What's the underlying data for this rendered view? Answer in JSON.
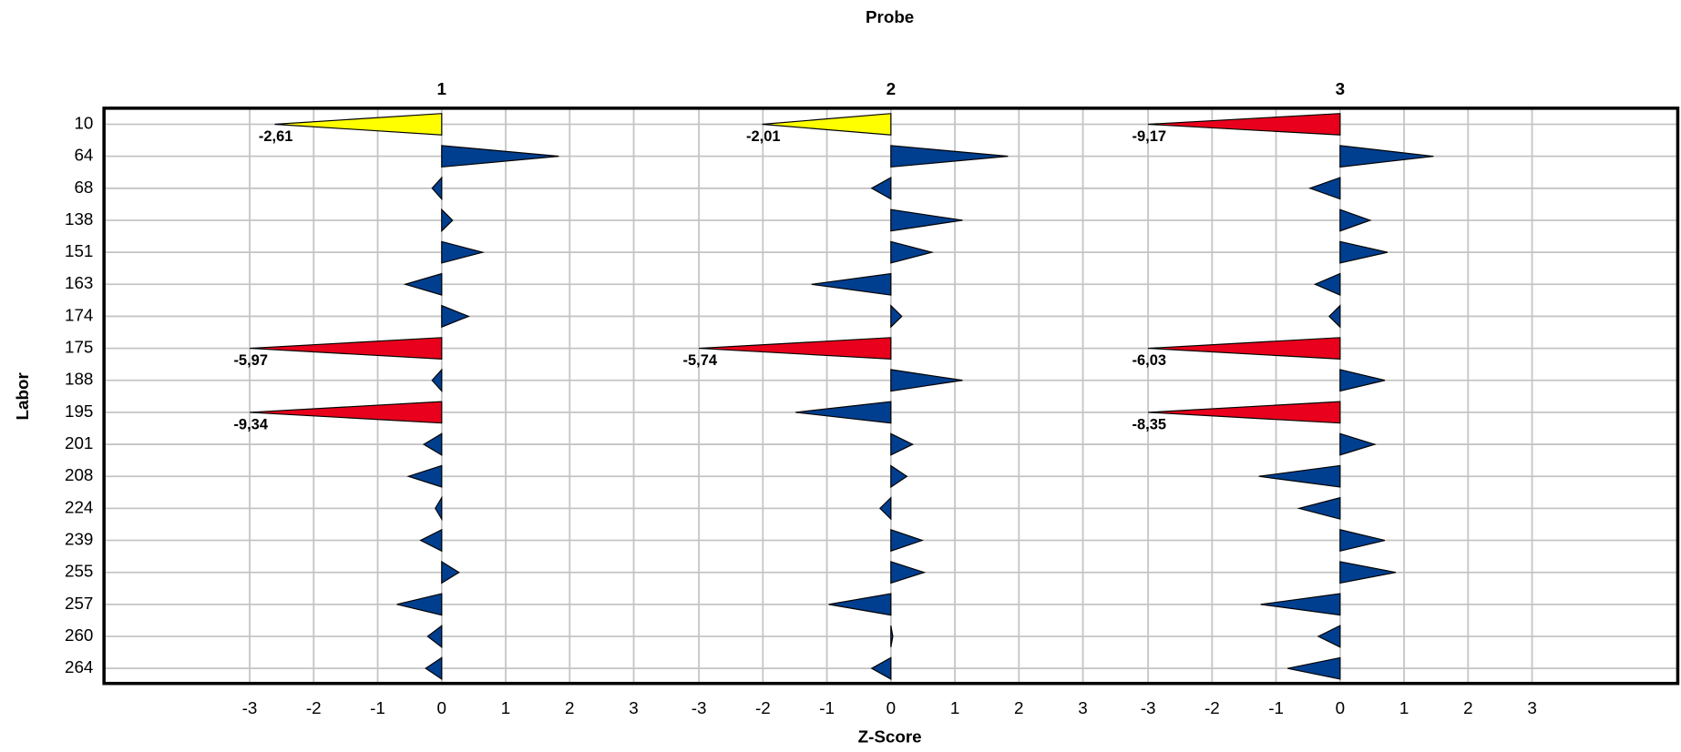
{
  "chart_data": {
    "type": "bar",
    "title": "Probe",
    "xlabel": "Z-Score",
    "ylabel": "Labor",
    "categories": [
      "10",
      "64",
      "68",
      "138",
      "151",
      "163",
      "174",
      "175",
      "188",
      "195",
      "201",
      "208",
      "224",
      "239",
      "255",
      "257",
      "260",
      "264"
    ],
    "xlim": [
      -3,
      3
    ],
    "xticks": [
      -3,
      -2,
      -1,
      0,
      1,
      2,
      3
    ],
    "grid": true,
    "panels": [
      {
        "title": "1",
        "values": [
          -2.61,
          1.83,
          -0.15,
          0.17,
          0.64,
          -0.57,
          0.42,
          -5.97,
          -0.15,
          -9.34,
          -0.28,
          -0.52,
          -0.1,
          -0.33,
          0.27,
          -0.7,
          -0.22,
          -0.25
        ],
        "value_labels": [
          "-2,61",
          null,
          null,
          null,
          null,
          null,
          null,
          "-5,97",
          null,
          "-9,34",
          null,
          null,
          null,
          null,
          null,
          null,
          null,
          null
        ],
        "colors": [
          "#ffff00",
          "#003f8f",
          "#003f8f",
          "#003f8f",
          "#003f8f",
          "#003f8f",
          "#003f8f",
          "#e8001c",
          "#003f8f",
          "#e8001c",
          "#003f8f",
          "#003f8f",
          "#003f8f",
          "#003f8f",
          "#003f8f",
          "#003f8f",
          "#003f8f",
          "#003f8f"
        ]
      },
      {
        "title": "2",
        "values": [
          -2.01,
          1.83,
          -0.3,
          1.12,
          0.64,
          -1.24,
          0.17,
          -5.74,
          1.12,
          -1.49,
          0.34,
          0.25,
          -0.17,
          0.49,
          0.52,
          -0.97,
          0.03,
          -0.3
        ],
        "value_labels": [
          "-2,01",
          null,
          null,
          null,
          null,
          null,
          null,
          "-5,74",
          null,
          null,
          null,
          null,
          null,
          null,
          null,
          null,
          null,
          null
        ],
        "colors": [
          "#ffff00",
          "#003f8f",
          "#003f8f",
          "#003f8f",
          "#003f8f",
          "#003f8f",
          "#003f8f",
          "#e8001c",
          "#003f8f",
          "#003f8f",
          "#003f8f",
          "#003f8f",
          "#003f8f",
          "#003f8f",
          "#003f8f",
          "#003f8f",
          "#003f8f",
          "#003f8f"
        ]
      },
      {
        "title": "3",
        "values": [
          -9.17,
          1.46,
          -0.47,
          0.47,
          0.74,
          -0.39,
          -0.17,
          -6.03,
          0.7,
          -8.35,
          0.54,
          -1.27,
          -0.64,
          0.7,
          0.87,
          -1.24,
          -0.34,
          -0.82
        ],
        "value_labels": [
          "-9,17",
          null,
          null,
          null,
          null,
          null,
          null,
          "-6,03",
          null,
          "-8,35",
          null,
          null,
          null,
          null,
          null,
          null,
          null,
          null
        ],
        "colors": [
          "#e8001c",
          "#003f8f",
          "#003f8f",
          "#003f8f",
          "#003f8f",
          "#003f8f",
          "#003f8f",
          "#e8001c",
          "#003f8f",
          "#e8001c",
          "#003f8f",
          "#003f8f",
          "#003f8f",
          "#003f8f",
          "#003f8f",
          "#003f8f",
          "#003f8f",
          "#003f8f"
        ]
      }
    ]
  }
}
